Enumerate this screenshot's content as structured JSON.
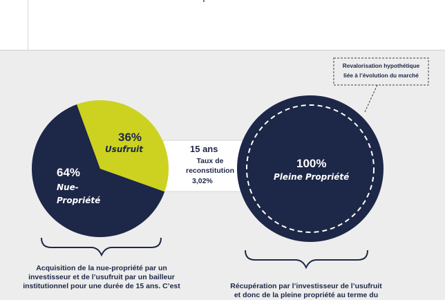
{
  "pie": {
    "slices": [
      {
        "percent": "64%",
        "label": "Nue-\nPropriété",
        "value": 64,
        "color": "#1d2747"
      },
      {
        "percent": "36%",
        "label": "Usufruit",
        "value": 36,
        "color": "#ccd21f"
      }
    ]
  },
  "arrow": {
    "duration": "15 ans",
    "rate_label": "Taux de\nreconstitution",
    "rate_value": "3,02%"
  },
  "full_circle": {
    "percent": "100%",
    "label": "Pleine Propriété",
    "color": "#1d2747"
  },
  "callout": {
    "text": "Revalorisation hypothétique\nliée à l’évolution du marché"
  },
  "captions": {
    "left": "Acquisition de la nue-propriété par un\ninvestisseur et de l’usufruit par un bailleur\ninstitutionnel pour une durée de 15 ans. C’est",
    "right": "Récupération par l’investisseur de l’usufruit\net donc de la pleine propriété au terme du"
  },
  "colors": {
    "navy": "#1d2747",
    "lime": "#ccd21f",
    "background": "#ededed"
  }
}
